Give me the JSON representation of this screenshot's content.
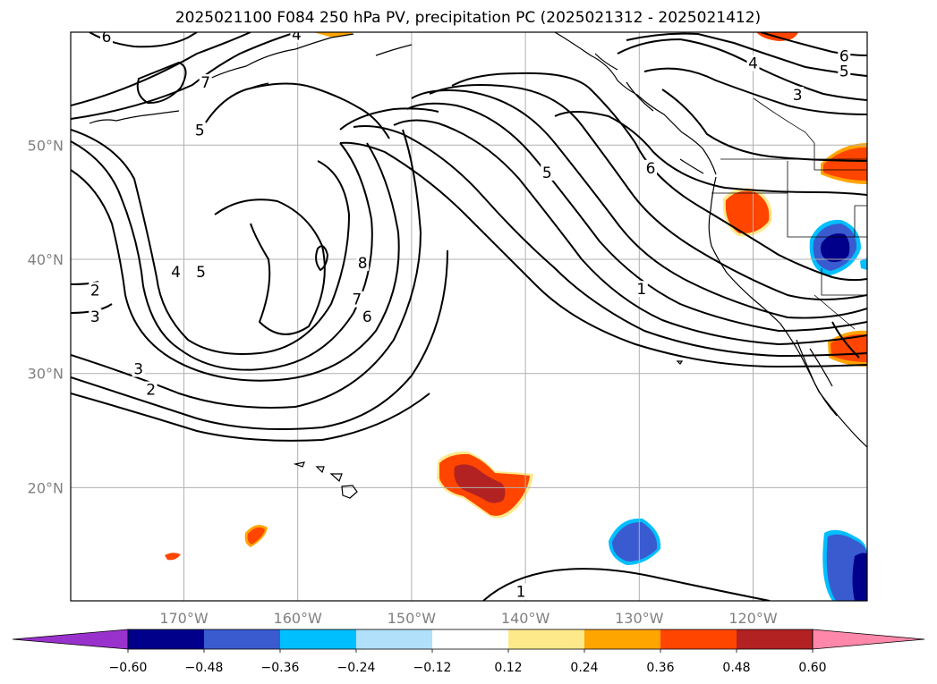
{
  "title": "2025021100 F084 250 hPa PV, precipitation PC (2025021312 - 2025021412)",
  "lat_ticks": [
    {
      "lat": 50,
      "label": "50°N"
    },
    {
      "lat": 40,
      "label": "40°N"
    },
    {
      "lat": 30,
      "label": "30°N"
    },
    {
      "lat": 20,
      "label": "20°N"
    }
  ],
  "lon_ticks": [
    {
      "lon": -170,
      "label": "170°W"
    },
    {
      "lon": -160,
      "label": "160°W"
    },
    {
      "lon": -150,
      "label": "150°W"
    },
    {
      "lon": -140,
      "label": "140°W"
    },
    {
      "lon": -130,
      "label": "130°W"
    },
    {
      "lon": -120,
      "label": "120°W"
    }
  ],
  "colorbar": {
    "colors": [
      "#9932cc",
      "#00008b",
      "#3a5bd0",
      "#00bfff",
      "#b0e0fa",
      "#ffffff",
      "#fde98a",
      "#ffa500",
      "#ff4500",
      "#b22222",
      "#ff88aa"
    ],
    "labels": [
      "−0.60",
      "−0.48",
      "−0.36",
      "−0.24",
      "−0.12",
      "0.12",
      "0.24",
      "0.36",
      "0.48",
      "0.60"
    ]
  },
  "contour_labels": [
    {
      "text": "6",
      "lon": -176.8,
      "lat": 59.5
    },
    {
      "text": "7",
      "lon": -168.1,
      "lat": 55.5
    },
    {
      "text": "5",
      "lon": -168.6,
      "lat": 51.3
    },
    {
      "text": "4",
      "lon": -160.1,
      "lat": 59.7
    },
    {
      "text": "4",
      "lon": -170.7,
      "lat": 38.9
    },
    {
      "text": "5",
      "lon": -168.5,
      "lat": 38.9
    },
    {
      "text": "8",
      "lon": -154.3,
      "lat": 39.7
    },
    {
      "text": "7",
      "lon": -154.8,
      "lat": 36.5
    },
    {
      "text": "6",
      "lon": -153.9,
      "lat": 35.0
    },
    {
      "text": "2",
      "lon": -177.8,
      "lat": 37.3
    },
    {
      "text": "3",
      "lon": -177.8,
      "lat": 35.0
    },
    {
      "text": "3",
      "lon": -174.0,
      "lat": 30.4
    },
    {
      "text": "2",
      "lon": -172.9,
      "lat": 28.6
    },
    {
      "text": "5",
      "lon": -138.1,
      "lat": 47.6
    },
    {
      "text": "6",
      "lon": -129.0,
      "lat": 48.0
    },
    {
      "text": "1",
      "lon": -129.8,
      "lat": 37.4
    },
    {
      "text": "4",
      "lon": -120.0,
      "lat": 57.2
    },
    {
      "text": "3",
      "lon": -116.1,
      "lat": 54.4
    },
    {
      "text": "6",
      "lon": -112.0,
      "lat": 57.8
    },
    {
      "text": "5",
      "lon": -112.0,
      "lat": 56.5
    },
    {
      "text": "1",
      "lon": -140.4,
      "lat": 10.9
    }
  ]
}
